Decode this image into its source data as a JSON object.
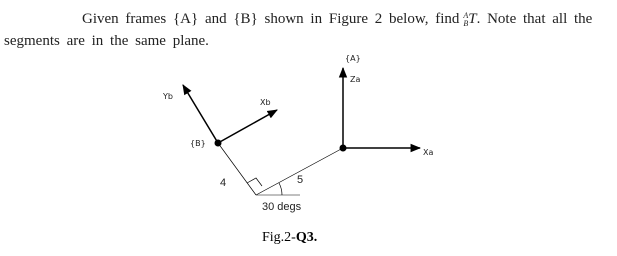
{
  "question": {
    "text_before": "Given frames {A} and {B} shown in Figure 2 below, find",
    "sup": "A",
    "sub": "B",
    "symbol": "T",
    "text_after": ". Note that all the segments are in the same plane."
  },
  "figure": {
    "frame_a_label": "{A}",
    "za_label": "Za",
    "xa_label": "Xa",
    "frame_b_label": "{B}",
    "yb_label": "Yb",
    "xb_label": "Xb",
    "segment_1_label": "4",
    "segment_2_label": "5",
    "angle_label": "30 degs",
    "caption": "Fig.2-",
    "caption_bold": "Q3."
  }
}
